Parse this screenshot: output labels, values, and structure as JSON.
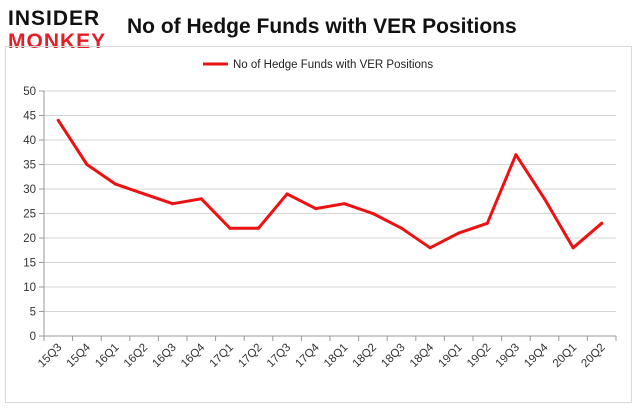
{
  "logo": {
    "line1": "INSIDER",
    "line2": "MONKEY"
  },
  "title": "No of Hedge Funds with VER Positions",
  "chart_data": {
    "type": "line",
    "title": "No of Hedge Funds with VER Positions",
    "xlabel": "",
    "ylabel": "",
    "categories": [
      "15Q3",
      "15Q4",
      "16Q1",
      "16Q2",
      "16Q3",
      "16Q4",
      "17Q1",
      "17Q2",
      "17Q3",
      "17Q4",
      "18Q1",
      "18Q2",
      "18Q3",
      "18Q4",
      "19Q1",
      "19Q2",
      "19Q3",
      "19Q4",
      "20Q1",
      "20Q2"
    ],
    "series": [
      {
        "name": "No of Hedge Funds with VER Positions",
        "values": [
          44,
          35,
          31,
          29,
          27,
          28,
          22,
          22,
          29,
          26,
          27,
          25,
          22,
          18,
          21,
          23,
          37,
          28,
          18,
          23
        ],
        "color": "#ee1111"
      }
    ],
    "ylim": [
      0,
      50
    ],
    "yticks": [
      0,
      5,
      10,
      15,
      20,
      25,
      30,
      35,
      40,
      45,
      50
    ],
    "grid": true,
    "legend": "top"
  }
}
